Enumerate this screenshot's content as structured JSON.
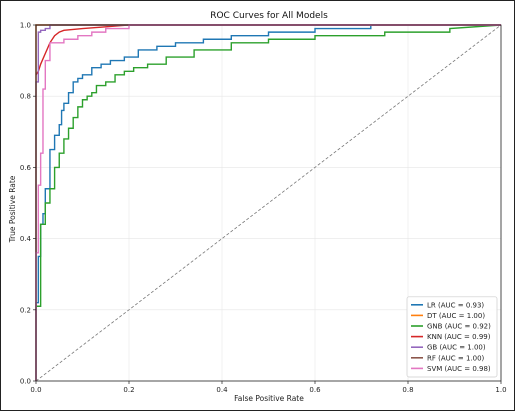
{
  "chart_data": {
    "type": "line",
    "title": "ROC Curves for All Models",
    "xlabel": "False Positive Rate",
    "ylabel": "True Positive Rate",
    "xlim": [
      0,
      1
    ],
    "ylim": [
      0,
      1
    ],
    "xticks": [
      "0.0",
      "0.2",
      "0.4",
      "0.6",
      "0.8",
      "1.0"
    ],
    "yticks": [
      "0.0",
      "0.2",
      "0.4",
      "0.6",
      "0.8",
      "1.0"
    ],
    "grid": true,
    "legend_position": "lower-right",
    "diagonal_reference": true,
    "series": [
      {
        "name": "LR (AUC = 0.93)",
        "color": "#1f77b4",
        "x": [
          0,
          0,
          0.005,
          0.005,
          0.01,
          0.01,
          0.015,
          0.015,
          0.02,
          0.02,
          0.03,
          0.03,
          0.04,
          0.04,
          0.05,
          0.05,
          0.055,
          0.055,
          0.06,
          0.06,
          0.07,
          0.07,
          0.08,
          0.08,
          0.09,
          0.09,
          0.1,
          0.1,
          0.12,
          0.12,
          0.14,
          0.14,
          0.16,
          0.16,
          0.19,
          0.19,
          0.22,
          0.22,
          0.26,
          0.26,
          0.3,
          0.3,
          0.36,
          0.36,
          0.42,
          0.42,
          0.5,
          0.5,
          0.6,
          0.6,
          0.72,
          0.72,
          1.0
        ],
        "y": [
          0,
          0.22,
          0.22,
          0.35,
          0.35,
          0.44,
          0.44,
          0.47,
          0.47,
          0.54,
          0.54,
          0.65,
          0.65,
          0.69,
          0.69,
          0.72,
          0.72,
          0.76,
          0.76,
          0.78,
          0.78,
          0.81,
          0.81,
          0.84,
          0.84,
          0.85,
          0.85,
          0.86,
          0.86,
          0.88,
          0.88,
          0.89,
          0.89,
          0.9,
          0.9,
          0.91,
          0.91,
          0.93,
          0.93,
          0.94,
          0.94,
          0.95,
          0.95,
          0.96,
          0.96,
          0.97,
          0.97,
          0.98,
          0.98,
          0.99,
          0.99,
          1.0,
          1.0
        ]
      },
      {
        "name": "DT (AUC = 1.00)",
        "color": "#ff7f0e",
        "x": [
          0,
          0,
          1.0
        ],
        "y": [
          0,
          1.0,
          1.0
        ]
      },
      {
        "name": "GNB (AUC = 0.92)",
        "color": "#2ca02c",
        "x": [
          0,
          0,
          0.01,
          0.01,
          0.02,
          0.02,
          0.03,
          0.03,
          0.04,
          0.04,
          0.05,
          0.05,
          0.06,
          0.06,
          0.07,
          0.07,
          0.08,
          0.08,
          0.09,
          0.09,
          0.1,
          0.1,
          0.11,
          0.11,
          0.12,
          0.12,
          0.13,
          0.13,
          0.15,
          0.15,
          0.17,
          0.17,
          0.19,
          0.19,
          0.21,
          0.21,
          0.24,
          0.24,
          0.28,
          0.28,
          0.34,
          0.34,
          0.42,
          0.42,
          0.5,
          0.5,
          0.6,
          0.6,
          0.75,
          0.75,
          0.89,
          0.89,
          1.0
        ],
        "y": [
          0,
          0.21,
          0.21,
          0.44,
          0.44,
          0.5,
          0.5,
          0.54,
          0.54,
          0.6,
          0.6,
          0.64,
          0.64,
          0.68,
          0.68,
          0.71,
          0.71,
          0.74,
          0.74,
          0.77,
          0.77,
          0.79,
          0.79,
          0.8,
          0.8,
          0.81,
          0.81,
          0.83,
          0.83,
          0.84,
          0.84,
          0.86,
          0.86,
          0.87,
          0.87,
          0.88,
          0.88,
          0.89,
          0.89,
          0.91,
          0.91,
          0.93,
          0.93,
          0.95,
          0.95,
          0.96,
          0.96,
          0.97,
          0.97,
          0.98,
          0.98,
          0.99,
          1.0
        ]
      },
      {
        "name": "KNN (AUC = 0.99)",
        "color": "#d62728",
        "x": [
          0,
          0.005,
          0.01,
          0.02,
          0.03,
          0.04,
          0.05,
          0.06,
          0.1,
          0.15,
          0.2,
          1.0
        ],
        "y": [
          0.86,
          0.87,
          0.89,
          0.92,
          0.95,
          0.97,
          0.98,
          0.985,
          0.99,
          0.995,
          1.0,
          1.0
        ]
      },
      {
        "name": "GB (AUC = 1.00)",
        "color": "#9467bd",
        "x": [
          0,
          0,
          0.005,
          0.005,
          0.01,
          0.01,
          0.02,
          0.02,
          0.03,
          0.03,
          1.0
        ],
        "y": [
          0,
          0.84,
          0.84,
          0.98,
          0.98,
          0.985,
          0.985,
          0.99,
          0.99,
          1.0,
          1.0
        ]
      },
      {
        "name": "RF (AUC = 1.00)",
        "color": "#8c564b",
        "x": [
          0,
          0,
          1.0
        ],
        "y": [
          0,
          1.0,
          1.0
        ]
      },
      {
        "name": "SVM (AUC = 0.98)",
        "color": "#e377c2",
        "x": [
          0,
          0,
          0.005,
          0.005,
          0.01,
          0.01,
          0.015,
          0.015,
          0.02,
          0.02,
          0.03,
          0.03,
          0.06,
          0.06,
          0.09,
          0.09,
          0.12,
          0.12,
          0.15,
          0.15,
          0.2,
          0.2,
          1.0
        ],
        "y": [
          0,
          0.36,
          0.36,
          0.55,
          0.55,
          0.64,
          0.64,
          0.82,
          0.82,
          0.9,
          0.9,
          0.95,
          0.95,
          0.96,
          0.96,
          0.97,
          0.97,
          0.98,
          0.98,
          0.99,
          0.99,
          1.0,
          1.0
        ]
      }
    ]
  }
}
